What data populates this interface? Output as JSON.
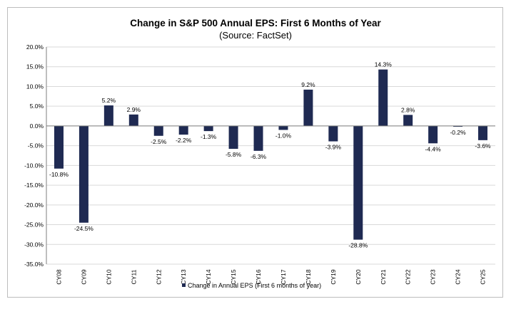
{
  "colors": {
    "bar": "#1f2a52",
    "grid": "#d9d9d9",
    "axis": "#7f7f7f"
  },
  "chart_data": {
    "type": "bar",
    "title": "Change in S&P 500 Annual EPS: First 6 Months of Year",
    "subtitle": "(Source: FactSet)",
    "categories": [
      "CY08",
      "CY09",
      "CY10",
      "CY11",
      "CY12",
      "CY13",
      "CY14",
      "CY15",
      "CY16",
      "CY17",
      "CY18",
      "CY19",
      "CY20",
      "CY21",
      "CY22",
      "CY23",
      "CY24",
      "CY25"
    ],
    "series": [
      {
        "name": "Change in Annual EPS (First 6 months of year)",
        "values": [
          -10.8,
          -24.5,
          5.2,
          2.9,
          -2.5,
          -2.2,
          -1.3,
          -5.8,
          -6.3,
          -1.0,
          9.2,
          -3.9,
          -28.8,
          14.3,
          2.8,
          -4.4,
          -0.2,
          -3.6
        ],
        "labels": [
          "-10.8%",
          "-24.5%",
          "5.2%",
          "2.9%",
          "-2.5%",
          "-2.2%",
          "-1.3%",
          "-5.8%",
          "-6.3%",
          "-1.0%",
          "9.2%",
          "-3.9%",
          "-28.8%",
          "14.3%",
          "2.8%",
          "-4.4%",
          "-0.2%",
          "-3.6%"
        ]
      }
    ],
    "ylim": [
      -35,
      20
    ],
    "yticks": [
      "20.0%",
      "15.0%",
      "10.0%",
      "5.0%",
      "0.0%",
      "-5.0%",
      "-10.0%",
      "-15.0%",
      "-20.0%",
      "-25.0%",
      "-30.0%",
      "-35.0%"
    ],
    "ytick_values": [
      20,
      15,
      10,
      5,
      0,
      -5,
      -10,
      -15,
      -20,
      -25,
      -30,
      -35
    ],
    "grid": true,
    "legend_position": "bottom"
  }
}
